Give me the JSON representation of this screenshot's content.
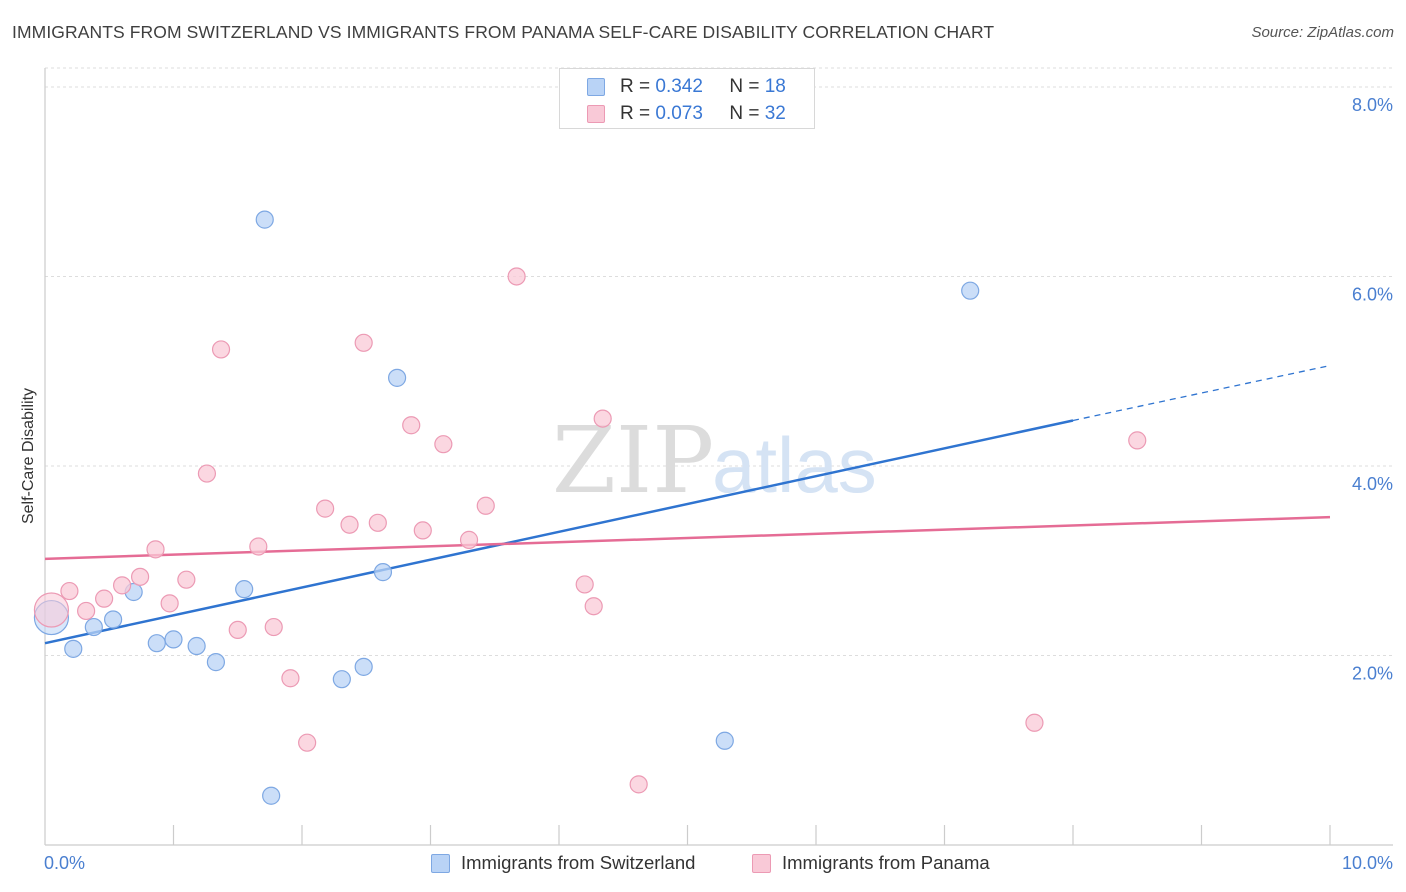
{
  "title": "IMMIGRANTS FROM SWITZERLAND VS IMMIGRANTS FROM PANAMA SELF-CARE DISABILITY CORRELATION CHART",
  "source": "Source: ZipAtlas.com",
  "watermark": {
    "zip": "ZIP",
    "atlas": "atlas"
  },
  "legend": {
    "rows": [
      {
        "r_label": "R =",
        "r_value": "0.342",
        "n_label": "N =",
        "n_value": "18"
      },
      {
        "r_label": "R =",
        "r_value": "0.073",
        "n_label": "N =",
        "n_value": "32"
      }
    ]
  },
  "colors": {
    "blue_fill": "#b9d3f6",
    "blue_stroke": "#7ea8e3",
    "blue_line": "#2f74d0",
    "pink_fill": "#f9c9d7",
    "pink_stroke": "#ec9ab4",
    "pink_line": "#e56c95",
    "grid": "#dddddd",
    "axis": "#cccccc",
    "tick_label": "#4a7fd0"
  },
  "chart_data": {
    "type": "scatter",
    "title": "IMMIGRANTS FROM SWITZERLAND VS IMMIGRANTS FROM PANAMA SELF-CARE DISABILITY CORRELATION CHART",
    "xlabel": "",
    "ylabel": "Self-Care Disability",
    "xlim": [
      0,
      10
    ],
    "ylim": [
      0,
      8.2
    ],
    "x_tick_labels": [
      "0.0%",
      "10.0%"
    ],
    "y_ticks": [
      2,
      4,
      6,
      8
    ],
    "y_tick_labels": [
      "2.0%",
      "4.0%",
      "6.0%",
      "8.0%"
    ],
    "grid": true,
    "legend_position": "bottom",
    "series": [
      {
        "name": "Immigrants from Switzerland",
        "color": "blue",
        "R": 0.342,
        "N": 18,
        "points": [
          {
            "x": 0.05,
            "y": 2.4,
            "big": true
          },
          {
            "x": 0.22,
            "y": 2.07
          },
          {
            "x": 0.38,
            "y": 2.3
          },
          {
            "x": 0.53,
            "y": 2.38
          },
          {
            "x": 0.69,
            "y": 2.67
          },
          {
            "x": 0.87,
            "y": 2.13
          },
          {
            "x": 1.0,
            "y": 2.17
          },
          {
            "x": 1.18,
            "y": 2.1
          },
          {
            "x": 1.33,
            "y": 1.93
          },
          {
            "x": 1.55,
            "y": 2.7
          },
          {
            "x": 1.71,
            "y": 6.6
          },
          {
            "x": 1.76,
            "y": 0.52
          },
          {
            "x": 2.31,
            "y": 1.75
          },
          {
            "x": 2.48,
            "y": 1.88
          },
          {
            "x": 2.63,
            "y": 2.88
          },
          {
            "x": 2.74,
            "y": 4.93
          },
          {
            "x": 5.29,
            "y": 1.1
          },
          {
            "x": 7.2,
            "y": 5.85
          }
        ],
        "trend": {
          "x0": 0,
          "y0": 2.13,
          "x1": 8.0,
          "y1": 4.48,
          "dashed_to_x": 10.0,
          "dashed_to_y": 5.06
        }
      },
      {
        "name": "Immigrants from Panama",
        "color": "pink",
        "R": 0.073,
        "N": 32,
        "points": [
          {
            "x": 0.05,
            "y": 2.48,
            "big": true
          },
          {
            "x": 0.19,
            "y": 2.68
          },
          {
            "x": 0.32,
            "y": 2.47
          },
          {
            "x": 0.46,
            "y": 2.6
          },
          {
            "x": 0.6,
            "y": 2.74
          },
          {
            "x": 0.74,
            "y": 2.83
          },
          {
            "x": 0.86,
            "y": 3.12
          },
          {
            "x": 0.97,
            "y": 2.55
          },
          {
            "x": 1.1,
            "y": 2.8
          },
          {
            "x": 1.26,
            "y": 3.92
          },
          {
            "x": 1.37,
            "y": 5.23
          },
          {
            "x": 1.5,
            "y": 2.27
          },
          {
            "x": 1.66,
            "y": 3.15
          },
          {
            "x": 1.78,
            "y": 2.3
          },
          {
            "x": 1.91,
            "y": 1.76
          },
          {
            "x": 2.04,
            "y": 1.08
          },
          {
            "x": 2.18,
            "y": 3.55
          },
          {
            "x": 2.37,
            "y": 3.38
          },
          {
            "x": 2.48,
            "y": 5.3
          },
          {
            "x": 2.59,
            "y": 3.4
          },
          {
            "x": 2.85,
            "y": 4.43
          },
          {
            "x": 2.94,
            "y": 3.32
          },
          {
            "x": 3.1,
            "y": 4.23
          },
          {
            "x": 3.3,
            "y": 3.22
          },
          {
            "x": 3.43,
            "y": 3.58
          },
          {
            "x": 3.67,
            "y": 6.0
          },
          {
            "x": 4.2,
            "y": 2.75
          },
          {
            "x": 4.27,
            "y": 2.52
          },
          {
            "x": 4.34,
            "y": 4.5
          },
          {
            "x": 4.62,
            "y": 0.64
          },
          {
            "x": 7.7,
            "y": 1.29
          },
          {
            "x": 8.5,
            "y": 4.27
          }
        ],
        "trend": {
          "x0": 0,
          "y0": 3.02,
          "x1": 10.0,
          "y1": 3.46
        }
      }
    ]
  }
}
